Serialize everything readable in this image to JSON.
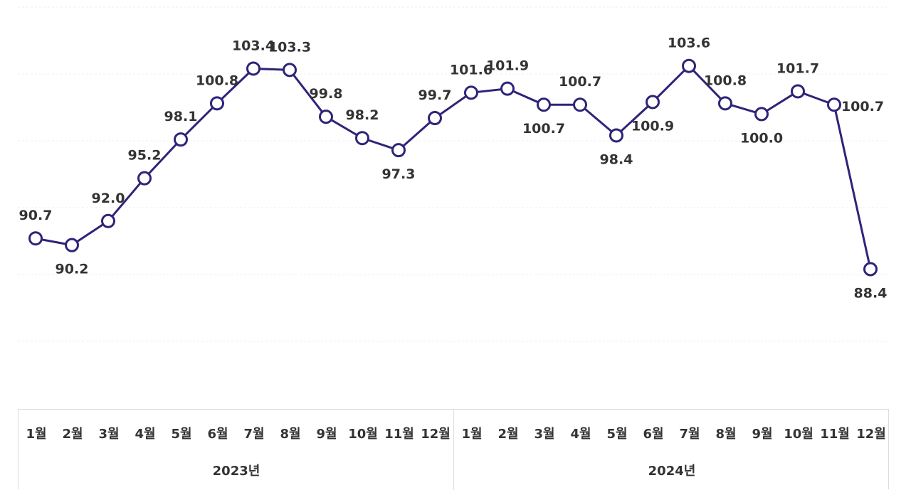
{
  "chart_data": {
    "type": "line",
    "categories": [
      "1월",
      "2월",
      "3월",
      "4월",
      "5월",
      "6월",
      "7월",
      "8월",
      "9월",
      "10월",
      "11월",
      "12월",
      "1월",
      "2월",
      "3월",
      "4월",
      "5월",
      "6월",
      "7월",
      "8월",
      "9월",
      "10월",
      "11월",
      "12월"
    ],
    "groups": [
      {
        "label": "2023년",
        "count": 12
      },
      {
        "label": "2024년",
        "count": 12
      }
    ],
    "series": [
      {
        "values": [
          90.7,
          90.2,
          92.0,
          95.2,
          98.1,
          100.8,
          103.4,
          103.3,
          99.8,
          98.2,
          97.3,
          99.7,
          101.6,
          101.9,
          100.7,
          100.7,
          98.4,
          100.9,
          103.6,
          100.8,
          100.0,
          101.7,
          100.7,
          88.4
        ]
      }
    ],
    "label_placement": [
      "above",
      "below",
      "above",
      "above",
      "above",
      "above",
      "above",
      "above",
      "above",
      "above",
      "below",
      "above",
      "above",
      "above",
      "below",
      "above",
      "below",
      "below",
      "above",
      "above",
      "below",
      "above",
      "right",
      "below"
    ],
    "ylim": [
      83,
      108
    ],
    "grid": true,
    "color": "#2e2478"
  }
}
